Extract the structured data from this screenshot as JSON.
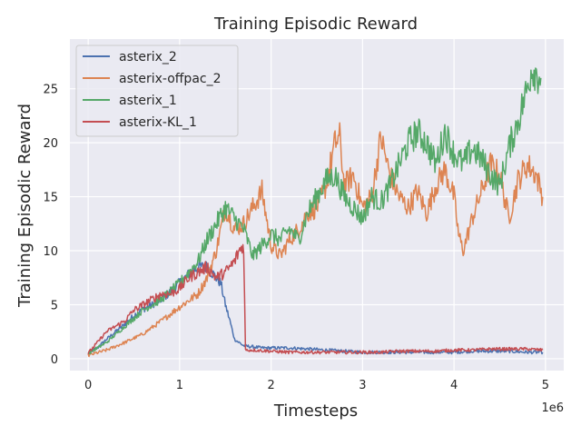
{
  "chart_data": {
    "type": "line",
    "title": "Training Episodic Reward",
    "xlabel": "Timesteps",
    "ylabel": "Training Episodic Reward",
    "x_offset_label": "1e6",
    "xlim": [
      -0.2,
      5.2
    ],
    "ylim": [
      -1.1,
      29.6
    ],
    "xticks": [
      0,
      1,
      2,
      3,
      4,
      5
    ],
    "yticks": [
      0,
      5,
      10,
      15,
      20,
      25
    ],
    "grid": true,
    "legend_position": "upper-left",
    "series": [
      {
        "name": "asterix_2",
        "color": "#4c72b0",
        "x": [
          0,
          0.1,
          0.2,
          0.3,
          0.4,
          0.5,
          0.6,
          0.7,
          0.8,
          0.9,
          1.0,
          1.1,
          1.2,
          1.3,
          1.4,
          1.45,
          1.5,
          1.55,
          1.6,
          1.65,
          1.7,
          1.8,
          1.9,
          2.0,
          2.2,
          2.4,
          2.6,
          2.8,
          3.0,
          3.2,
          3.4,
          3.6,
          3.8,
          4.0,
          4.2,
          4.4,
          4.6,
          4.8,
          4.97
        ],
        "y": [
          0.5,
          1.0,
          1.8,
          2.5,
          3.2,
          4.0,
          4.6,
          5.0,
          5.5,
          6.2,
          7.0,
          7.8,
          8.5,
          8.5,
          7.5,
          7.0,
          5.0,
          3.5,
          1.8,
          1.5,
          1.2,
          1.1,
          1.0,
          1.0,
          1.0,
          0.9,
          0.8,
          0.7,
          0.6,
          0.6,
          0.6,
          0.6,
          0.6,
          0.6,
          0.7,
          0.7,
          0.7,
          0.6,
          0.6
        ]
      },
      {
        "name": "asterix-offpac_2",
        "color": "#dd8452",
        "x": [
          0,
          0.2,
          0.4,
          0.6,
          0.8,
          1.0,
          1.2,
          1.3,
          1.4,
          1.5,
          1.6,
          1.7,
          1.8,
          1.9,
          2.0,
          2.1,
          2.2,
          2.3,
          2.4,
          2.5,
          2.6,
          2.7,
          2.75,
          2.8,
          2.9,
          3.0,
          3.1,
          3.2,
          3.3,
          3.4,
          3.5,
          3.6,
          3.7,
          3.8,
          3.9,
          4.0,
          4.05,
          4.1,
          4.15,
          4.2,
          4.3,
          4.4,
          4.5,
          4.6,
          4.7,
          4.8,
          4.9,
          4.97
        ],
        "y": [
          0.3,
          0.8,
          1.5,
          2.3,
          3.5,
          4.8,
          6.0,
          7.5,
          10.0,
          14.0,
          12.0,
          12.5,
          14.0,
          15.5,
          10.5,
          9.5,
          11.0,
          12.0,
          13.5,
          14.0,
          16.0,
          20.0,
          20.5,
          16.0,
          17.0,
          14.0,
          15.0,
          20.5,
          17.0,
          15.0,
          14.0,
          15.5,
          13.5,
          16.0,
          17.5,
          15.0,
          11.5,
          10.0,
          11.5,
          13.0,
          15.5,
          18.0,
          17.0,
          13.0,
          16.5,
          18.0,
          17.0,
          15.0
        ]
      },
      {
        "name": "asterix_1",
        "color": "#55a868",
        "x": [
          0,
          0.2,
          0.4,
          0.6,
          0.8,
          1.0,
          1.1,
          1.2,
          1.3,
          1.4,
          1.5,
          1.6,
          1.7,
          1.8,
          1.9,
          2.0,
          2.1,
          2.2,
          2.3,
          2.4,
          2.5,
          2.6,
          2.7,
          2.8,
          2.9,
          3.0,
          3.1,
          3.2,
          3.3,
          3.4,
          3.5,
          3.6,
          3.7,
          3.8,
          3.9,
          4.0,
          4.1,
          4.2,
          4.3,
          4.4,
          4.5,
          4.6,
          4.7,
          4.8,
          4.85,
          4.9,
          4.95
        ],
        "y": [
          0.5,
          1.5,
          3.0,
          4.5,
          5.5,
          7.0,
          8.0,
          9.0,
          11.0,
          12.5,
          14.0,
          13.0,
          12.0,
          9.5,
          10.5,
          11.5,
          11.0,
          12.0,
          11.0,
          13.5,
          15.0,
          16.5,
          17.0,
          15.0,
          14.0,
          13.0,
          15.0,
          14.5,
          16.0,
          18.0,
          20.0,
          21.0,
          20.0,
          18.0,
          21.0,
          19.0,
          18.0,
          19.5,
          18.5,
          17.0,
          16.0,
          19.5,
          22.0,
          25.0,
          27.0,
          26.5,
          26.0
        ]
      },
      {
        "name": "asterix-KL_1",
        "color": "#c44e52",
        "x": [
          0,
          0.1,
          0.2,
          0.3,
          0.4,
          0.5,
          0.6,
          0.7,
          0.8,
          0.9,
          1.0,
          1.1,
          1.2,
          1.3,
          1.4,
          1.5,
          1.6,
          1.65,
          1.7,
          1.72,
          1.8,
          2.0,
          2.2,
          2.4,
          2.6,
          2.8,
          3.0,
          3.2,
          3.4,
          3.6,
          3.8,
          4.0,
          4.2,
          4.4,
          4.6,
          4.8,
          4.97
        ],
        "y": [
          0.5,
          1.5,
          2.5,
          3.0,
          3.5,
          4.5,
          5.0,
          5.5,
          6.0,
          6.0,
          6.5,
          7.5,
          8.0,
          8.5,
          7.5,
          8.0,
          9.0,
          10.0,
          10.5,
          0.8,
          0.8,
          0.7,
          0.6,
          0.6,
          0.6,
          0.6,
          0.6,
          0.6,
          0.7,
          0.7,
          0.7,
          0.8,
          0.8,
          0.9,
          0.9,
          0.9,
          0.8
        ]
      }
    ]
  }
}
